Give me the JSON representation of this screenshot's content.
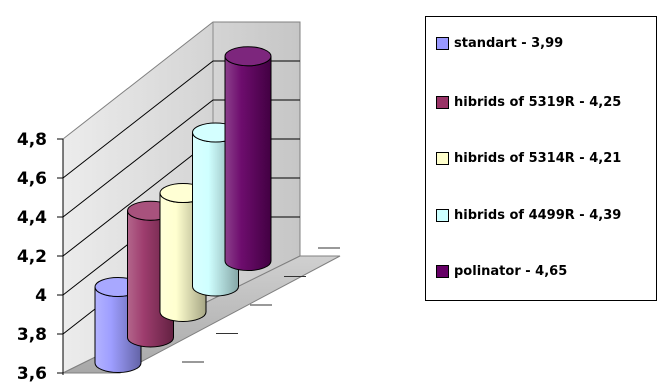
{
  "chart_data": {
    "type": "bar",
    "variant": "3d-cylinder",
    "categories": [
      "standart",
      "hibrids of 5319R",
      "hibrids of 5314R",
      "hibrids of 4499R",
      "polinator"
    ],
    "values": [
      3.99,
      4.25,
      4.21,
      4.39,
      4.65
    ],
    "value_text": [
      "3,99",
      "4,25",
      "4,21",
      "4,39",
      "4,65"
    ],
    "colors": [
      "#9999ff",
      "#993366",
      "#ffffcc",
      "#ccffff",
      "#660066"
    ],
    "ylim": [
      3.6,
      4.8
    ],
    "yticks": [
      "3,6",
      "3,8",
      "4",
      "4,2",
      "4,4",
      "4,6",
      "4,8"
    ],
    "grid": true,
    "legend_position": "right",
    "legend_entries": [
      {
        "label": "standart  - 3,99"
      },
      {
        "label": "hibrids of 5319R  -  4,25"
      },
      {
        "label": "hibrids of 5314R  - 4,21"
      },
      {
        "label": "hibrids of 4499R  - 4,39"
      },
      {
        "label": "polinator  - 4,65"
      }
    ]
  }
}
